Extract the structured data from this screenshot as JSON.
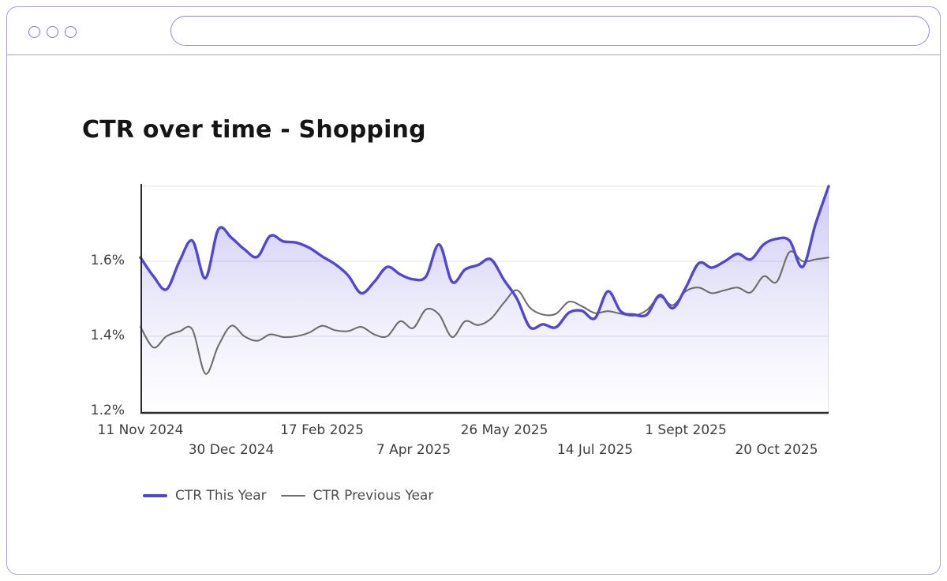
{
  "browser_chrome": {
    "window_dot_count": 3,
    "address_bar_text": "",
    "frame_border_color": "#a79ee5",
    "dot_border_color": "#8478dc"
  },
  "chart_data": {
    "type": "line",
    "title": "CTR over time - Shopping",
    "xlabel": "",
    "ylabel": "",
    "y_unit": "%",
    "ylim": [
      1.2,
      1.8
    ],
    "grid": "horizontal",
    "legend_position": "bottom-left",
    "x_interval": "weekly",
    "x_range": [
      "11 Nov 2024",
      "3 Nov 2025"
    ],
    "axis_color": "#2b2b2b",
    "grid_color": "#e3e3e7",
    "yticks": [
      {
        "label": "1.2%",
        "value": 1.2
      },
      {
        "label": "1.4%",
        "value": 1.4
      },
      {
        "label": "1.6%",
        "value": 1.6
      }
    ],
    "xticks": [
      {
        "label": "11 Nov 2024",
        "week": 0,
        "row": "top"
      },
      {
        "label": "30 Dec 2024",
        "week": 7,
        "row": "bottom"
      },
      {
        "label": "17 Feb 2025",
        "week": 14,
        "row": "top"
      },
      {
        "label": "7 Apr 2025",
        "week": 21,
        "row": "bottom"
      },
      {
        "label": "26 May 2025",
        "week": 28,
        "row": "top"
      },
      {
        "label": "14 Jul 2025",
        "week": 35,
        "row": "bottom"
      },
      {
        "label": "1 Sept 2025",
        "week": 42,
        "row": "top"
      },
      {
        "label": "20 Oct 2025",
        "week": 49,
        "row": "bottom"
      }
    ],
    "series": [
      {
        "name": "CTR This Year",
        "color": "#5246d4",
        "fill": "gradient",
        "values": [
          1.61,
          1.56,
          1.525,
          1.6,
          1.655,
          1.555,
          1.685,
          1.663,
          1.632,
          1.612,
          1.668,
          1.653,
          1.65,
          1.636,
          1.613,
          1.592,
          1.562,
          1.515,
          1.545,
          1.585,
          1.565,
          1.552,
          1.56,
          1.645,
          1.545,
          1.578,
          1.59,
          1.605,
          1.55,
          1.5,
          1.424,
          1.432,
          1.424,
          1.463,
          1.468,
          1.448,
          1.52,
          1.466,
          1.458,
          1.458,
          1.51,
          1.475,
          1.53,
          1.595,
          1.583,
          1.6,
          1.62,
          1.605,
          1.645,
          1.66,
          1.655,
          1.585,
          1.7,
          1.8
        ]
      },
      {
        "name": "CTR Previous Year",
        "color": "#6e6e6e",
        "fill": "none",
        "values": [
          1.425,
          1.37,
          1.4,
          1.413,
          1.418,
          1.3,
          1.375,
          1.428,
          1.4,
          1.388,
          1.405,
          1.398,
          1.4,
          1.41,
          1.428,
          1.416,
          1.414,
          1.425,
          1.405,
          1.4,
          1.44,
          1.422,
          1.472,
          1.458,
          1.398,
          1.44,
          1.43,
          1.447,
          1.49,
          1.523,
          1.476,
          1.458,
          1.46,
          1.492,
          1.48,
          1.462,
          1.467,
          1.46,
          1.455,
          1.47,
          1.505,
          1.483,
          1.52,
          1.53,
          1.515,
          1.523,
          1.53,
          1.517,
          1.56,
          1.545,
          1.625,
          1.6,
          1.605,
          1.61
        ]
      }
    ]
  }
}
